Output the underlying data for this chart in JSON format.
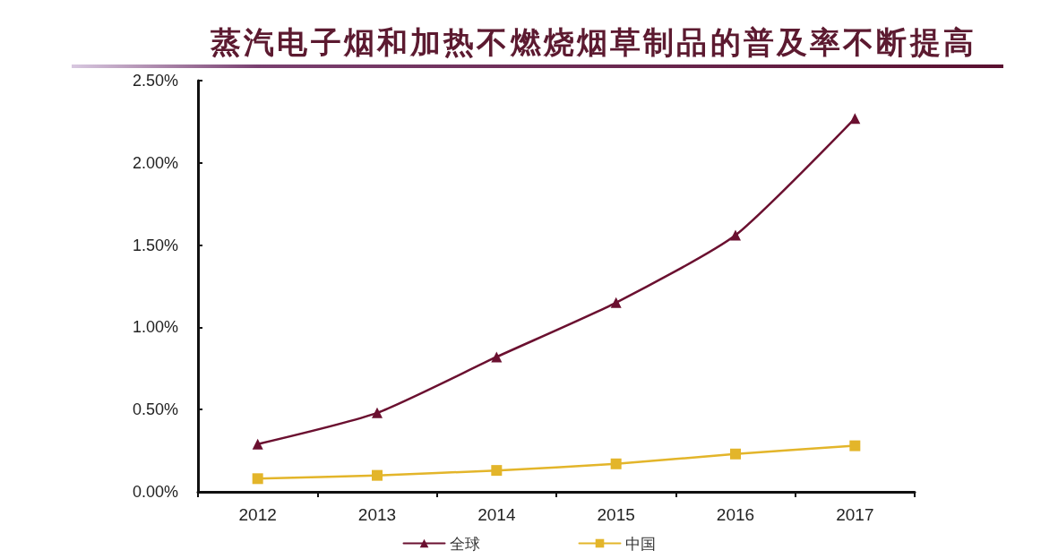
{
  "chart_data": {
    "type": "line",
    "title": "蒸汽电子烟和加热不燃烧烟草制品的普及率不断提高",
    "categories": [
      "2012",
      "2013",
      "2014",
      "2015",
      "2016",
      "2017"
    ],
    "series": [
      {
        "name": "全球",
        "color": "#6b1030",
        "marker": "triangle",
        "values": [
          0.29,
          0.48,
          0.82,
          1.15,
          1.56,
          2.27
        ]
      },
      {
        "name": "中国",
        "color": "#e3b52a",
        "marker": "square",
        "values": [
          0.08,
          0.1,
          0.13,
          0.17,
          0.23,
          0.28
        ]
      }
    ],
    "ylim": [
      0,
      2.5
    ],
    "yticks": [
      {
        "value": 0,
        "label": "0.00%"
      },
      {
        "value": 0.5,
        "label": "0.50%"
      },
      {
        "value": 1,
        "label": "1.00%"
      },
      {
        "value": 1.5,
        "label": "1.50%"
      },
      {
        "value": 2,
        "label": "2.00%"
      },
      {
        "value": 2.5,
        "label": "2.50%"
      }
    ],
    "grid": false,
    "legend": "bottom",
    "line_style": "solid"
  }
}
